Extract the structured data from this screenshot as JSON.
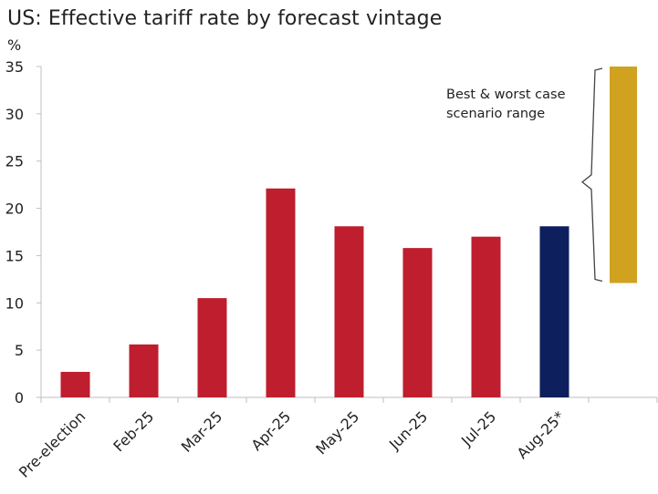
{
  "chart_data": {
    "type": "bar",
    "title": "US: Effective tariff rate by forecast vintage",
    "ylabel": "%",
    "xlabel": "",
    "ylim": [
      0,
      35
    ],
    "yticks": [
      0,
      5,
      10,
      15,
      20,
      25,
      30,
      35
    ],
    "grid": false,
    "categories": [
      "Pre-election",
      "Feb-25",
      "Mar-25",
      "Apr-25",
      "May-25",
      "Jun-25",
      "Jul-25",
      "Aug-25*"
    ],
    "values": [
      2.7,
      5.6,
      10.5,
      22.1,
      18.1,
      15.8,
      17.0,
      18.1
    ],
    "bar_colors": [
      "#be1e2d",
      "#be1e2d",
      "#be1e2d",
      "#be1e2d",
      "#be1e2d",
      "#be1e2d",
      "#be1e2d",
      "#0d1f5c"
    ],
    "range_bar": {
      "low": 12.1,
      "high": 35,
      "color": "#d0a21f",
      "annotation": [
        "Best & worst case",
        "scenario range"
      ]
    }
  }
}
